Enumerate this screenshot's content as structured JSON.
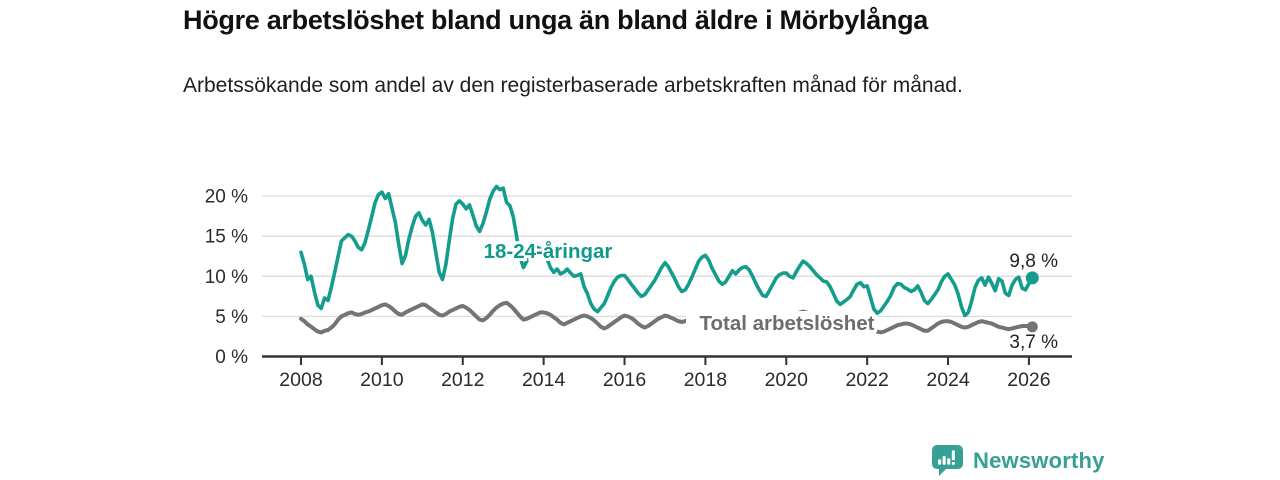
{
  "header": {
    "title": "Högre arbetslöshet bland unga än bland äldre i Mörbylånga",
    "subtitle": "Arbetssökande som andel av den registerbaserade arbetskraften månad för månad."
  },
  "footer": {
    "brand": "Newsworthy",
    "logo_icon": "speech-bubble-bar-chart-icon"
  },
  "colors": {
    "youth_line": "#149d8c",
    "total_line": "#747474",
    "youth_label": "#10988a",
    "total_label": "#6d6d6d",
    "grid": "#dddddd",
    "axis": "#333333",
    "tick_text": "#2b2b2b",
    "value_text": "#222222",
    "logo": "#35a093"
  },
  "chart_data": {
    "type": "line",
    "title": "Högre arbetslöshet bland unga än bland äldre i Mörbylånga",
    "subtitle": "Arbetssökande som andel av den registerbaserade arbetskraften månad för månad.",
    "x_unit": "month",
    "x_start": "2008-01",
    "x_end": "2026-02",
    "x_ticks": [
      2008,
      2010,
      2012,
      2014,
      2016,
      2018,
      2020,
      2022,
      2024,
      2026
    ],
    "y_tick_values": [
      0,
      5,
      10,
      15,
      20
    ],
    "y_tick_labels": [
      "0 %",
      "5 %",
      "10 %",
      "15 %",
      "20 %"
    ],
    "ylim": [
      0,
      21.5
    ],
    "grid": "horizontal",
    "legend_position": "inline-labels",
    "series": [
      {
        "name": "18-24-åringar",
        "color": "#149d8c",
        "end_label": "9,8 %",
        "last_value": 9.8,
        "values": [
          13.0,
          11.5,
          9.6,
          10.0,
          8.0,
          6.4,
          6.0,
          7.3,
          7.0,
          8.6,
          10.5,
          12.5,
          14.4,
          14.8,
          15.2,
          15.0,
          14.4,
          13.6,
          13.3,
          14.2,
          15.8,
          17.5,
          19.2,
          20.2,
          20.5,
          19.7,
          20.3,
          18.5,
          16.7,
          14.0,
          11.6,
          12.6,
          14.6,
          16.2,
          17.5,
          17.9,
          17.0,
          16.4,
          17.1,
          15.5,
          13.0,
          10.5,
          9.6,
          11.5,
          14.5,
          17.2,
          19.0,
          19.4,
          19.0,
          18.4,
          18.9,
          17.6,
          16.3,
          15.6,
          16.6,
          18.0,
          19.6,
          20.6,
          21.2,
          20.8,
          21.0,
          19.2,
          18.8,
          17.4,
          14.9,
          12.4,
          11.1,
          11.9,
          12.5,
          13.1,
          13.6,
          13.4,
          13.0,
          12.2,
          11.1,
          10.5,
          10.9,
          10.3,
          10.5,
          10.9,
          10.4,
          10.0,
          10.1,
          10.3,
          8.7,
          7.8,
          6.6,
          5.9,
          5.6,
          6.1,
          6.6,
          7.6,
          8.6,
          9.4,
          9.9,
          10.1,
          10.1,
          9.6,
          9.0,
          8.5,
          7.9,
          7.5,
          7.7,
          8.3,
          8.9,
          9.5,
          10.3,
          11.1,
          11.7,
          11.2,
          10.4,
          9.6,
          8.7,
          8.1,
          8.3,
          9.0,
          9.9,
          10.9,
          11.9,
          12.4,
          12.6,
          12.0,
          11.0,
          10.2,
          9.4,
          9.0,
          9.3,
          10.0,
          10.7,
          10.3,
          10.8,
          11.1,
          11.2,
          10.8,
          10.0,
          9.1,
          8.3,
          7.6,
          7.5,
          8.2,
          9.0,
          9.8,
          10.2,
          10.4,
          10.4,
          10.0,
          9.8,
          10.6,
          11.3,
          11.9,
          11.6,
          11.2,
          10.7,
          10.2,
          9.8,
          9.4,
          9.3,
          8.7,
          7.8,
          6.9,
          6.5,
          6.8,
          7.1,
          7.5,
          8.3,
          9.0,
          9.2,
          8.7,
          8.8,
          7.4,
          5.9,
          5.4,
          5.7,
          6.3,
          6.9,
          7.6,
          8.6,
          9.1,
          9.0,
          8.6,
          8.4,
          8.1,
          8.3,
          8.8,
          8.0,
          7.0,
          6.6,
          7.1,
          7.7,
          8.3,
          9.3,
          10.0,
          10.3,
          9.6,
          8.9,
          7.8,
          6.2,
          5.1,
          5.5,
          6.9,
          8.6,
          9.5,
          9.8,
          8.9,
          9.9,
          9.1,
          8.2,
          9.7,
          9.4,
          7.9,
          7.6,
          8.9,
          9.6,
          9.9,
          8.5,
          8.3,
          9.1,
          9.8
        ]
      },
      {
        "name": "Total arbetslöshet",
        "color": "#747474",
        "end_label": "3,7 %",
        "last_value": 3.7,
        "values": [
          4.7,
          4.4,
          4.0,
          3.7,
          3.4,
          3.1,
          3.0,
          3.2,
          3.3,
          3.6,
          4.0,
          4.6,
          5.0,
          5.2,
          5.4,
          5.5,
          5.3,
          5.2,
          5.3,
          5.5,
          5.6,
          5.8,
          6.0,
          6.2,
          6.4,
          6.5,
          6.3,
          6.0,
          5.6,
          5.3,
          5.2,
          5.5,
          5.7,
          5.9,
          6.1,
          6.3,
          6.5,
          6.4,
          6.1,
          5.8,
          5.5,
          5.2,
          5.1,
          5.3,
          5.6,
          5.8,
          6.0,
          6.2,
          6.3,
          6.1,
          5.8,
          5.4,
          5.0,
          4.6,
          4.5,
          4.8,
          5.2,
          5.7,
          6.1,
          6.4,
          6.6,
          6.7,
          6.4,
          6.0,
          5.5,
          5.0,
          4.6,
          4.7,
          4.9,
          5.1,
          5.3,
          5.5,
          5.5,
          5.4,
          5.2,
          4.9,
          4.6,
          4.2,
          4.0,
          4.2,
          4.4,
          4.6,
          4.8,
          5.0,
          5.1,
          5.0,
          4.8,
          4.5,
          4.1,
          3.7,
          3.5,
          3.7,
          4.0,
          4.3,
          4.6,
          4.9,
          5.1,
          5.0,
          4.8,
          4.5,
          4.1,
          3.8,
          3.6,
          3.8,
          4.1,
          4.4,
          4.7,
          4.9,
          5.1,
          5.0,
          4.8,
          4.6,
          4.4,
          4.3,
          4.4,
          4.6,
          4.7,
          4.8,
          4.9,
          5.0,
          5.0,
          4.9,
          4.7,
          4.5,
          4.3,
          4.2,
          4.3,
          4.4,
          4.5,
          4.6,
          4.7,
          4.8,
          4.8,
          4.7,
          4.6,
          4.4,
          4.2,
          4.1,
          4.2,
          4.3,
          4.5,
          4.6,
          4.7,
          4.8,
          4.9,
          4.9,
          5.0,
          5.3,
          5.5,
          5.6,
          5.5,
          5.4,
          5.2,
          5.0,
          4.9,
          4.8,
          4.8,
          4.7,
          4.5,
          4.3,
          4.1,
          3.9,
          3.8,
          3.8,
          3.9,
          4.0,
          4.0,
          3.9,
          3.8,
          3.6,
          3.3,
          3.1,
          3.0,
          3.1,
          3.3,
          3.5,
          3.7,
          3.9,
          4.0,
          4.1,
          4.1,
          4.0,
          3.8,
          3.6,
          3.4,
          3.2,
          3.2,
          3.5,
          3.8,
          4.1,
          4.3,
          4.4,
          4.4,
          4.3,
          4.1,
          3.9,
          3.7,
          3.6,
          3.7,
          3.9,
          4.1,
          4.3,
          4.4,
          4.3,
          4.2,
          4.1,
          3.9,
          3.7,
          3.6,
          3.5,
          3.4,
          3.5,
          3.6,
          3.7,
          3.8,
          3.8,
          3.8,
          3.7
        ]
      }
    ],
    "annotations": [
      {
        "text": "18-24-åringar",
        "series": "18-24-åringar",
        "approx_position": "2013-06, 12.3 %"
      },
      {
        "text": "Total arbetslöshet",
        "series": "Total arbetslöshet",
        "approx_position": "2019-10, 3.3 %"
      }
    ]
  }
}
